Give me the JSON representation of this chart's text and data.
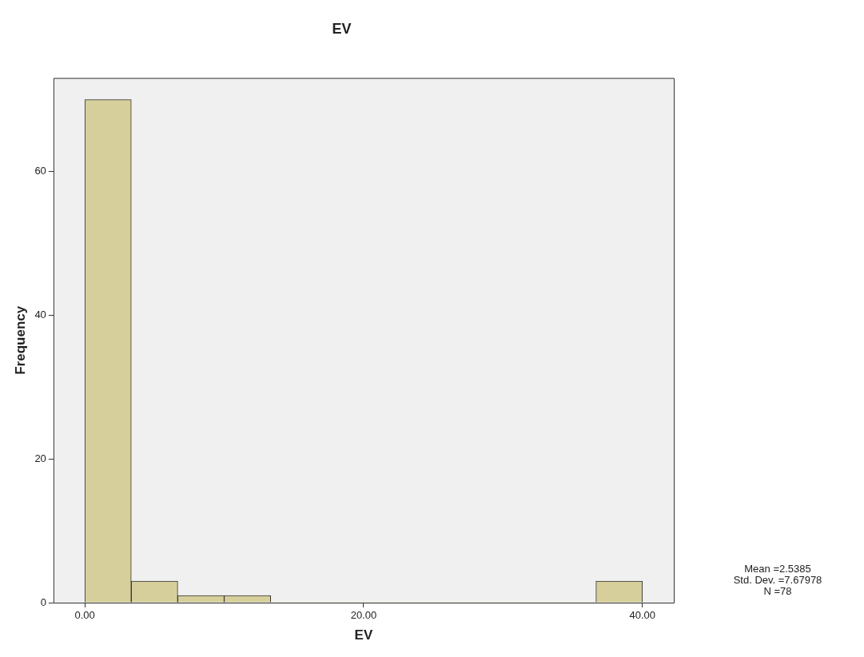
{
  "chart_data": {
    "type": "histogram",
    "title": "EV",
    "xlabel": "EV",
    "ylabel": "Frequency",
    "bins": [
      0,
      3.333,
      6.667,
      10,
      13.333,
      16.667,
      20,
      23.333,
      26.667,
      30,
      33.333,
      36.667,
      40
    ],
    "values": [
      70,
      3,
      1,
      1,
      0,
      0,
      0,
      0,
      0,
      0,
      0,
      3
    ],
    "color": "#d6cf9b",
    "xlim": [
      -2.25,
      42.25
    ],
    "ylim": [
      0,
      73
    ],
    "xticks": [
      {
        "value": 0,
        "label": "0.00"
      },
      {
        "value": 20,
        "label": "20.00"
      },
      {
        "value": 40,
        "label": "40.00"
      }
    ],
    "yticks": [
      0,
      20,
      40,
      60
    ],
    "grid": false,
    "legend": false,
    "annotations": [
      "Mean =2.5385",
      "Std. Dev. =7.67978",
      "N =78"
    ]
  }
}
